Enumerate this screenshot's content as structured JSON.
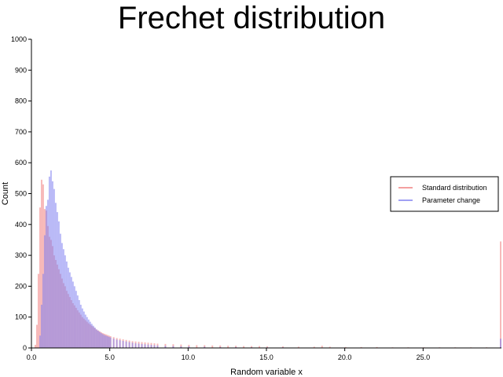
{
  "chart_data": {
    "type": "histogram",
    "title": "Frechet distribution",
    "xlabel": "Random variable x",
    "ylabel": "Count",
    "xlim": [
      0,
      30
    ],
    "ylim": [
      0,
      1000
    ],
    "bin_width": 0.1,
    "x_ticks": [
      0,
      5,
      10,
      15,
      20,
      25
    ],
    "x_tick_labels": [
      "0.0",
      "5.0",
      "10.0",
      "15.0",
      "20.0",
      "25.0"
    ],
    "y_ticks": [
      0,
      100,
      200,
      300,
      400,
      500,
      600,
      700,
      800,
      900,
      1000
    ],
    "y_tick_labels": [
      "0",
      "100",
      "200",
      "300",
      "400",
      "500",
      "600",
      "700",
      "800",
      "900",
      "1000"
    ],
    "grid": false,
    "legend_position": "right",
    "series": [
      {
        "name": "Standard distribution",
        "color": "#f08080",
        "opacity": 0.55,
        "bins": [
          [
            0.2,
            10
          ],
          [
            0.3,
            75
          ],
          [
            0.4,
            240
          ],
          [
            0.5,
            455
          ],
          [
            0.6,
            545
          ],
          [
            0.7,
            530
          ],
          [
            0.8,
            450
          ],
          [
            0.9,
            445
          ],
          [
            1.0,
            395
          ],
          [
            1.1,
            360
          ],
          [
            1.2,
            350
          ],
          [
            1.3,
            330
          ],
          [
            1.4,
            300
          ],
          [
            1.5,
            285
          ],
          [
            1.6,
            270
          ],
          [
            1.7,
            255
          ],
          [
            1.8,
            240
          ],
          [
            1.9,
            225
          ],
          [
            2.0,
            210
          ],
          [
            2.1,
            200
          ],
          [
            2.2,
            185
          ],
          [
            2.3,
            175
          ],
          [
            2.4,
            165
          ],
          [
            2.5,
            155
          ],
          [
            2.6,
            145
          ],
          [
            2.7,
            138
          ],
          [
            2.8,
            130
          ],
          [
            2.9,
            122
          ],
          [
            3.0,
            115
          ],
          [
            3.1,
            108
          ],
          [
            3.2,
            100
          ],
          [
            3.3,
            95
          ],
          [
            3.4,
            90
          ],
          [
            3.5,
            85
          ],
          [
            3.6,
            80
          ],
          [
            3.7,
            76
          ],
          [
            3.8,
            72
          ],
          [
            3.9,
            68
          ],
          [
            4.0,
            64
          ],
          [
            4.1,
            60
          ],
          [
            4.2,
            57
          ],
          [
            4.3,
            54
          ],
          [
            4.4,
            51
          ],
          [
            4.5,
            48
          ],
          [
            4.6,
            46
          ],
          [
            4.7,
            44
          ],
          [
            4.8,
            42
          ],
          [
            4.9,
            40
          ],
          [
            5.0,
            38
          ],
          [
            5.2,
            35
          ],
          [
            5.4,
            32
          ],
          [
            5.6,
            30
          ],
          [
            5.8,
            28
          ],
          [
            6.0,
            26
          ],
          [
            6.2,
            24
          ],
          [
            6.4,
            22
          ],
          [
            6.6,
            21
          ],
          [
            6.8,
            20
          ],
          [
            7.0,
            19
          ],
          [
            7.2,
            18
          ],
          [
            7.4,
            17
          ],
          [
            7.6,
            16
          ],
          [
            7.8,
            15
          ],
          [
            8.0,
            14
          ],
          [
            8.5,
            13
          ],
          [
            9.0,
            12
          ],
          [
            9.5,
            11
          ],
          [
            10.0,
            10
          ],
          [
            10.5,
            9
          ],
          [
            11.0,
            9
          ],
          [
            11.5,
            8
          ],
          [
            12.0,
            8
          ],
          [
            12.5,
            7
          ],
          [
            13.0,
            7
          ],
          [
            13.5,
            6
          ],
          [
            14.0,
            6
          ],
          [
            14.5,
            6
          ],
          [
            15.0,
            5
          ],
          [
            16.0,
            5
          ],
          [
            17.0,
            4
          ],
          [
            18.0,
            4
          ],
          [
            18.5,
            7
          ],
          [
            19.0,
            4
          ],
          [
            20.0,
            3
          ],
          [
            21.0,
            3
          ],
          [
            22.0,
            3
          ],
          [
            23.0,
            2
          ],
          [
            24.0,
            2
          ],
          [
            25.0,
            2
          ],
          [
            26.0,
            2
          ],
          [
            27.0,
            2
          ],
          [
            28.0,
            2
          ],
          [
            29.0,
            2
          ],
          [
            29.9,
            345
          ]
        ]
      },
      {
        "name": "Parameter change",
        "color": "#8080f0",
        "opacity": 0.55,
        "bins": [
          [
            0.5,
            40
          ],
          [
            0.6,
            140
          ],
          [
            0.7,
            240
          ],
          [
            0.8,
            365
          ],
          [
            0.9,
            460
          ],
          [
            1.0,
            480
          ],
          [
            1.1,
            555
          ],
          [
            1.2,
            575
          ],
          [
            1.3,
            540
          ],
          [
            1.4,
            515
          ],
          [
            1.5,
            470
          ],
          [
            1.6,
            440
          ],
          [
            1.7,
            410
          ],
          [
            1.8,
            370
          ],
          [
            1.9,
            340
          ],
          [
            2.0,
            320
          ],
          [
            2.1,
            300
          ],
          [
            2.2,
            280
          ],
          [
            2.3,
            260
          ],
          [
            2.4,
            245
          ],
          [
            2.5,
            230
          ],
          [
            2.6,
            215
          ],
          [
            2.7,
            200
          ],
          [
            2.8,
            185
          ],
          [
            2.9,
            170
          ],
          [
            3.0,
            155
          ],
          [
            3.1,
            140
          ],
          [
            3.2,
            128
          ],
          [
            3.3,
            118
          ],
          [
            3.4,
            108
          ],
          [
            3.5,
            100
          ],
          [
            3.6,
            92
          ],
          [
            3.7,
            85
          ],
          [
            3.8,
            78
          ],
          [
            3.9,
            72
          ],
          [
            4.0,
            66
          ],
          [
            4.1,
            60
          ],
          [
            4.2,
            56
          ],
          [
            4.3,
            52
          ],
          [
            4.4,
            48
          ],
          [
            4.5,
            45
          ],
          [
            4.6,
            42
          ],
          [
            4.7,
            40
          ],
          [
            4.8,
            38
          ],
          [
            4.9,
            36
          ],
          [
            5.0,
            34
          ],
          [
            5.2,
            30
          ],
          [
            5.4,
            27
          ],
          [
            5.6,
            25
          ],
          [
            5.8,
            23
          ],
          [
            6.0,
            21
          ],
          [
            6.2,
            19
          ],
          [
            6.4,
            17
          ],
          [
            6.6,
            15
          ],
          [
            6.8,
            14
          ],
          [
            7.0,
            13
          ],
          [
            7.2,
            12
          ],
          [
            7.4,
            11
          ],
          [
            7.6,
            10
          ],
          [
            7.8,
            9
          ],
          [
            8.0,
            8
          ],
          [
            8.5,
            7
          ],
          [
            9.0,
            6
          ],
          [
            9.5,
            5
          ],
          [
            10.0,
            5
          ],
          [
            11.0,
            4
          ],
          [
            12.0,
            3
          ],
          [
            13.0,
            3
          ],
          [
            14.0,
            2
          ],
          [
            15.0,
            2
          ],
          [
            16.0,
            2
          ],
          [
            18.0,
            1
          ],
          [
            20.0,
            1
          ],
          [
            22.0,
            1
          ],
          [
            24.0,
            1
          ],
          [
            26.0,
            1
          ],
          [
            28.0,
            1
          ],
          [
            29.9,
            30
          ]
        ]
      }
    ]
  }
}
